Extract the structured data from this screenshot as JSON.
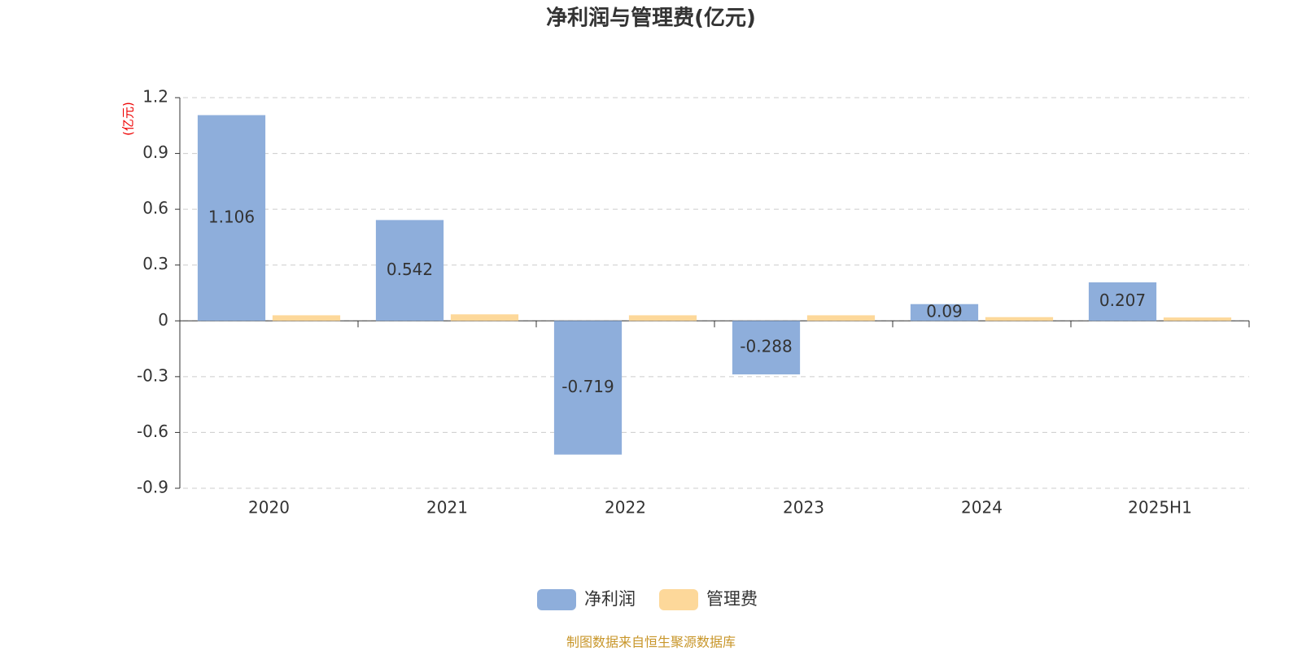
{
  "chart_data": {
    "type": "bar",
    "title": "净利润与管理费(亿元)",
    "y_unit": "(亿元)",
    "categories": [
      "2020",
      "2021",
      "2022",
      "2023",
      "2024",
      "2025H1"
    ],
    "series": [
      {
        "name": "净利润",
        "color": "#8eaedb",
        "values": [
          1.106,
          0.542,
          -0.719,
          -0.288,
          0.09,
          0.207
        ]
      },
      {
        "name": "管理费",
        "color": "#fdd89a",
        "values": [
          0.03,
          0.035,
          0.03,
          0.03,
          0.02,
          0.018
        ]
      }
    ],
    "ylim": [
      -0.9,
      1.2
    ],
    "yticks": [
      -0.9,
      -0.6,
      -0.3,
      0,
      0.3,
      0.6,
      0.9,
      1.2
    ],
    "grid": true,
    "footer": "制图数据来自恒生聚源数据库"
  }
}
